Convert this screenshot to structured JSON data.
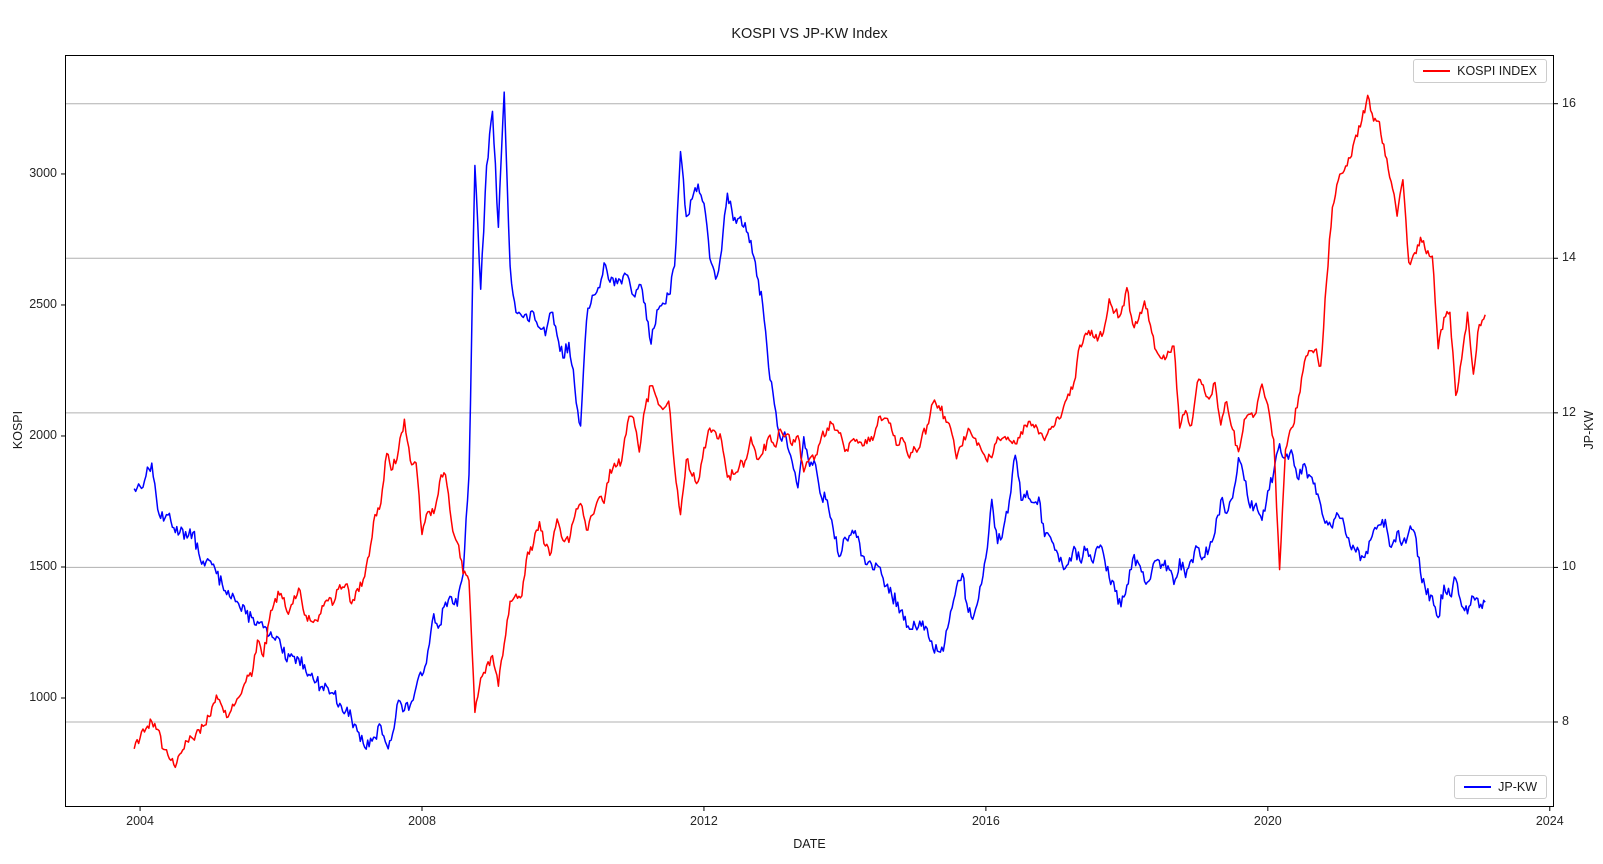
{
  "title": "KOSPI VS JP-KW Index",
  "chart_data": {
    "type": "line",
    "title": "KOSPI VS JP-KW Index",
    "xlabel": "DATE",
    "x_ticks": [
      2004,
      2008,
      2012,
      2016,
      2020,
      2024
    ],
    "x_range": [
      2002.935,
      2024.06
    ],
    "grid": "horizontal gridlines at right-axis ticks",
    "grid_color": "#b0b0b0",
    "left_axis": {
      "label": "KOSPI",
      "ticks": [
        1000,
        1500,
        2000,
        2500,
        3000
      ],
      "range": [
        584,
        3454
      ]
    },
    "right_axis": {
      "label": "JP-KW",
      "ticks": [
        8,
        10,
        12,
        14,
        16
      ],
      "range": [
        6.9,
        16.63
      ]
    },
    "legend_top": {
      "label": "KOSPI INDEX",
      "position": "upper right"
    },
    "legend_bottom": {
      "label": "JP-KW",
      "position": "lower right"
    },
    "sampling": "monthly estimates read from daily plot, decimal-year time base",
    "start_year_decimal": 2003.9167,
    "step_years": 0.0833333,
    "jitter": {
      "subdivisions": 4,
      "seed": 13
    },
    "series": [
      {
        "name": "KOSPI INDEX",
        "axis": "left",
        "color": "#ff0000",
        "jitter_amplitude": 20,
        "values": [
          806,
          848,
          883,
          910,
          880,
          804,
          768,
          735,
          790,
          835,
          845,
          879,
          896,
          932,
          1011,
          966,
          928,
          970,
          1008,
          1062,
          1083,
          1221,
          1158,
          1297,
          1379,
          1399,
          1330,
          1360,
          1419,
          1317,
          1295,
          1297,
          1352,
          1371,
          1364,
          1432,
          1434,
          1360,
          1417,
          1453,
          1542,
          1700,
          1743,
          1933,
          1873,
          1946,
          2064,
          1906,
          1897,
          1624,
          1711,
          1704,
          1825,
          1852,
          1675,
          1594,
          1474,
          1448,
          945,
          1076,
          1124,
          1162,
          1045,
          1206,
          1369,
          1396,
          1390,
          1557,
          1591,
          1673,
          1580,
          1555,
          1683,
          1602,
          1594,
          1693,
          1742,
          1641,
          1698,
          1759,
          1743,
          1872,
          1882,
          1905,
          2051,
          2069,
          1939,
          2107,
          2192,
          2142,
          2101,
          2133,
          1880,
          1700,
          1909,
          1847,
          1826,
          1956,
          2030,
          2014,
          1982,
          1843,
          1854,
          1882,
          1905,
          1996,
          1912,
          1933,
          1997,
          1962,
          2026,
          2005,
          1964,
          2001,
          1863,
          1914,
          1926,
          1997,
          2030,
          2045,
          2011,
          1941,
          1980,
          1986,
          1962,
          1995,
          2002,
          2076,
          2068,
          2020,
          1964,
          1981,
          1916,
          1949,
          1986,
          2041,
          2127,
          2115,
          2074,
          2030,
          1913,
          1963,
          2029,
          1992,
          1961,
          1912,
          1917,
          1996,
          1994,
          1983,
          1970,
          2016,
          2035,
          2044,
          2008,
          1983,
          2026,
          2068,
          2092,
          2160,
          2205,
          2347,
          2392,
          2403,
          2363,
          2394,
          2523,
          2476,
          2467,
          2566,
          2427,
          2446,
          2515,
          2423,
          2326,
          2295,
          2323,
          2343,
          2030,
          2097,
          2041,
          2205,
          2195,
          2141,
          2204,
          2042,
          2131,
          2025,
          1940,
          2063,
          2083,
          2088,
          2198,
          2119,
          1987,
          1490,
          1948,
          2030,
          2108,
          2249,
          2326,
          2328,
          2267,
          2591,
          2873,
          2976,
          3013,
          3061,
          3148,
          3204,
          3300,
          3202,
          3199,
          3069,
          2970,
          2839,
          2978,
          2663,
          2699,
          2758,
          2696,
          2686,
          2333,
          2452,
          2472,
          2155,
          2294,
          2472,
          2236,
          2425,
          2463
        ]
      },
      {
        "name": "JP-KW",
        "axis": "right",
        "color": "#0000ff",
        "jitter_amplitude": 0.085,
        "values": [
          11.02,
          11.05,
          11.18,
          11.35,
          10.75,
          10.6,
          10.7,
          10.45,
          10.52,
          10.38,
          10.45,
          10.18,
          10.02,
          10.08,
          9.92,
          9.78,
          9.7,
          9.62,
          9.48,
          9.4,
          9.35,
          9.3,
          9.22,
          9.12,
          9.06,
          8.98,
          8.78,
          8.85,
          8.82,
          8.74,
          8.6,
          8.52,
          8.46,
          8.44,
          8.36,
          8.24,
          8.14,
          8.05,
          7.88,
          7.72,
          7.68,
          7.8,
          7.95,
          7.7,
          7.85,
          8.28,
          8.15,
          8.22,
          8.45,
          8.6,
          8.92,
          9.4,
          9.25,
          9.55,
          9.62,
          9.5,
          9.91,
          11.2,
          15.2,
          13.6,
          15.2,
          15.9,
          14.4,
          16.15,
          13.9,
          13.3,
          13.25,
          13.2,
          13.3,
          13.1,
          13.0,
          13.3,
          13.0,
          12.71,
          12.91,
          12.34,
          11.83,
          13.19,
          13.52,
          13.62,
          13.94,
          13.69,
          13.74,
          13.67,
          13.78,
          13.52,
          13.66,
          13.41,
          12.89,
          13.33,
          13.42,
          13.53,
          13.9,
          15.38,
          14.54,
          14.77,
          14.96,
          14.71,
          14.0,
          13.73,
          14.1,
          14.84,
          14.49,
          14.52,
          14.46,
          14.23,
          13.77,
          13.4,
          12.59,
          12.11,
          11.67,
          11.68,
          11.37,
          11.03,
          11.69,
          11.31,
          11.33,
          10.91,
          10.87,
          10.5,
          10.14,
          10.39,
          10.42,
          10.39,
          10.15,
          10.07,
          9.97,
          10.0,
          9.76,
          9.63,
          9.55,
          9.32,
          9.2,
          9.24,
          9.24,
          9.21,
          8.95,
          8.91,
          9.03,
          9.43,
          9.75,
          9.92,
          9.42,
          9.39,
          9.75,
          10.13,
          10.88,
          10.31,
          10.51,
          10.87,
          11.45,
          10.87,
          10.99,
          10.84,
          10.91,
          10.4,
          10.39,
          10.22,
          10.04,
          10.04,
          10.27,
          10.09,
          10.22,
          10.09,
          10.27,
          10.18,
          9.87,
          9.69,
          9.49,
          9.77,
          10.11,
          10.05,
          9.82,
          9.85,
          10.09,
          10.04,
          10.02,
          9.78,
          10.11,
          9.87,
          10.1,
          10.26,
          10.13,
          10.24,
          10.45,
          10.87,
          10.7,
          10.9,
          11.42,
          11.13,
          10.77,
          10.83,
          10.61,
          10.99,
          11.23,
          11.6,
          11.43,
          11.52,
          11.16,
          11.33,
          11.2,
          11.09,
          10.81,
          10.6,
          10.51,
          10.68,
          10.55,
          10.28,
          10.2,
          10.15,
          10.18,
          10.48,
          10.55,
          10.62,
          10.26,
          10.46,
          10.33,
          10.46,
          10.45,
          9.93,
          9.65,
          9.63,
          9.35,
          9.77,
          9.64,
          9.85,
          9.5,
          9.4,
          9.62,
          9.48,
          9.55
        ]
      }
    ]
  }
}
